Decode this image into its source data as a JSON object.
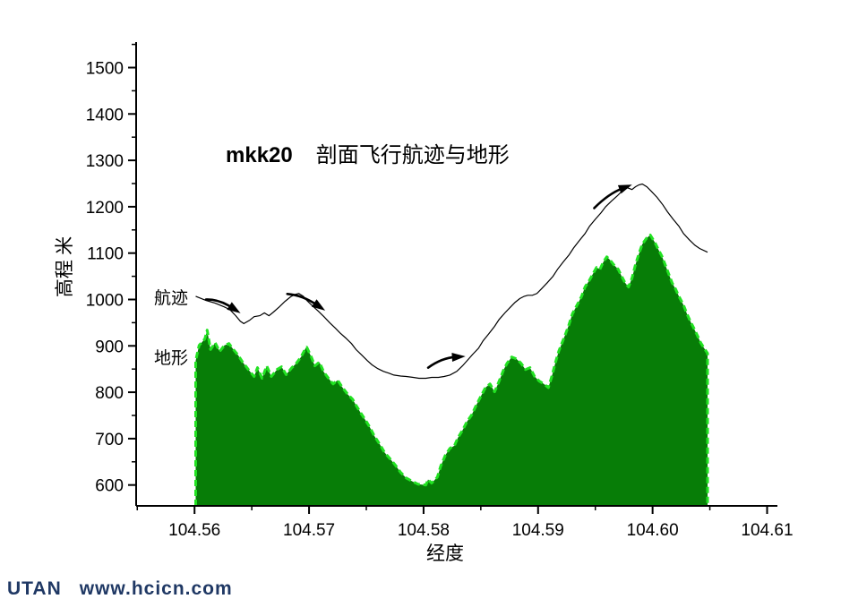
{
  "title": {
    "prefix": "mkk20",
    "text": "剖面飞行航迹与地形"
  },
  "labels": {
    "track": "航迹",
    "terrain": "地形",
    "y_axis": "高程 米",
    "x_axis": "经度"
  },
  "footer": {
    "brand": "UTAN",
    "url": "www.hcicn.com",
    "color": "#1f3864"
  },
  "colors": {
    "terrain_fill": "#077d07",
    "terrain_edge": "#22e222",
    "track": "#000000",
    "axis": "#000000",
    "background": "#ffffff"
  },
  "chart_data": {
    "type": "area",
    "title": "mkk20 剖面飞行航迹与地形",
    "xlabel": "经度",
    "ylabel": "高程 米",
    "xlim": [
      104.5549,
      104.6109
    ],
    "ylim": [
      555,
      1555
    ],
    "grid": false,
    "x_ticks": [
      104.56,
      104.57,
      104.58,
      104.59,
      104.6,
      104.61
    ],
    "x_minor_ticks": [
      104.555,
      104.565,
      104.575,
      104.585,
      104.595,
      104.605
    ],
    "y_ticks": [
      600,
      700,
      800,
      900,
      1000,
      1100,
      1200,
      1300,
      1400,
      1500
    ],
    "y_minor_ticks": [
      650,
      750,
      850,
      950,
      1050,
      1150,
      1250,
      1350,
      1450,
      1550
    ],
    "series": [
      {
        "name": "地形",
        "type": "area",
        "points": [
          [
            104.5601,
            868
          ],
          [
            104.5604,
            901
          ],
          [
            104.5609,
            915
          ],
          [
            104.5611,
            934
          ],
          [
            104.5614,
            892
          ],
          [
            104.5618,
            907
          ],
          [
            104.5622,
            888
          ],
          [
            104.5626,
            901
          ],
          [
            104.563,
            905
          ],
          [
            104.5634,
            892
          ],
          [
            104.5638,
            880
          ],
          [
            104.5642,
            865
          ],
          [
            104.5647,
            849
          ],
          [
            104.5652,
            834
          ],
          [
            104.5655,
            853
          ],
          [
            104.5659,
            830
          ],
          [
            104.5663,
            857
          ],
          [
            104.5667,
            834
          ],
          [
            104.5672,
            849
          ],
          [
            104.5676,
            855
          ],
          [
            104.568,
            838
          ],
          [
            104.5685,
            853
          ],
          [
            104.5689,
            863
          ],
          [
            104.5693,
            876
          ],
          [
            104.5697,
            895
          ],
          [
            104.5698,
            897
          ],
          [
            104.5702,
            876
          ],
          [
            104.5705,
            857
          ],
          [
            104.5709,
            865
          ],
          [
            104.5713,
            843
          ],
          [
            104.5717,
            830
          ],
          [
            104.5721,
            818
          ],
          [
            104.5725,
            826
          ],
          [
            104.5729,
            811
          ],
          [
            104.5734,
            795
          ],
          [
            104.5738,
            785
          ],
          [
            104.5741,
            772
          ],
          [
            104.5745,
            756
          ],
          [
            104.5749,
            741
          ],
          [
            104.5753,
            725
          ],
          [
            104.5757,
            706
          ],
          [
            104.5762,
            687
          ],
          [
            104.5766,
            670
          ],
          [
            104.5771,
            656
          ],
          [
            104.5776,
            641
          ],
          [
            104.578,
            627
          ],
          [
            104.5785,
            615
          ],
          [
            104.579,
            608
          ],
          [
            104.5795,
            602
          ],
          [
            104.5802,
            600
          ],
          [
            104.5804,
            612
          ],
          [
            104.5807,
            604
          ],
          [
            104.5812,
            617
          ],
          [
            104.5815,
            641
          ],
          [
            104.5819,
            664
          ],
          [
            104.5823,
            679
          ],
          [
            104.5827,
            685
          ],
          [
            104.583,
            702
          ],
          [
            104.5834,
            718
          ],
          [
            104.5838,
            737
          ],
          [
            104.5842,
            751
          ],
          [
            104.5846,
            772
          ],
          [
            104.585,
            791
          ],
          [
            104.5854,
            810
          ],
          [
            104.5858,
            818
          ],
          [
            104.5862,
            801
          ],
          [
            104.5866,
            824
          ],
          [
            104.587,
            849
          ],
          [
            104.5873,
            863
          ],
          [
            104.5877,
            876
          ],
          [
            104.5881,
            872
          ],
          [
            104.5885,
            863
          ],
          [
            104.5889,
            849
          ],
          [
            104.5893,
            853
          ],
          [
            104.5897,
            834
          ],
          [
            104.5901,
            824
          ],
          [
            104.5905,
            818
          ],
          [
            104.5909,
            810
          ],
          [
            104.5912,
            834
          ],
          [
            104.5915,
            863
          ],
          [
            104.5918,
            888
          ],
          [
            104.5921,
            907
          ],
          [
            104.5924,
            926
          ],
          [
            104.5927,
            946
          ],
          [
            104.593,
            969
          ],
          [
            104.5934,
            988
          ],
          [
            104.5938,
            1007
          ],
          [
            104.5941,
            1027
          ],
          [
            104.5945,
            1042
          ],
          [
            104.5948,
            1056
          ],
          [
            104.5951,
            1069
          ],
          [
            104.5954,
            1065
          ],
          [
            104.5957,
            1081
          ],
          [
            104.596,
            1092
          ],
          [
            104.5963,
            1085
          ],
          [
            104.5966,
            1075
          ],
          [
            104.597,
            1065
          ],
          [
            104.5973,
            1050
          ],
          [
            104.5976,
            1036
          ],
          [
            104.5979,
            1027
          ],
          [
            104.5982,
            1046
          ],
          [
            104.5985,
            1075
          ],
          [
            104.5988,
            1098
          ],
          [
            104.5991,
            1119
          ],
          [
            104.5995,
            1133
          ],
          [
            104.5998,
            1139
          ],
          [
            104.6002,
            1123
          ],
          [
            104.6005,
            1108
          ],
          [
            104.6008,
            1094
          ],
          [
            104.6011,
            1075
          ],
          [
            104.6014,
            1056
          ],
          [
            104.6017,
            1036
          ],
          [
            104.602,
            1023
          ],
          [
            104.6023,
            1007
          ],
          [
            104.6027,
            988
          ],
          [
            104.603,
            969
          ],
          [
            104.6033,
            953
          ],
          [
            104.6036,
            938
          ],
          [
            104.6039,
            923
          ],
          [
            104.6042,
            907
          ],
          [
            104.6045,
            895
          ],
          [
            104.6048,
            884
          ]
        ]
      },
      {
        "name": "航迹",
        "type": "line",
        "points": [
          [
            104.5601,
            1007
          ],
          [
            104.561,
            998
          ],
          [
            104.5618,
            992
          ],
          [
            104.5626,
            984
          ],
          [
            104.5631,
            978
          ],
          [
            104.5636,
            965
          ],
          [
            104.564,
            953
          ],
          [
            104.5643,
            948
          ],
          [
            104.5648,
            955
          ],
          [
            104.5652,
            963
          ],
          [
            104.5657,
            965
          ],
          [
            104.5661,
            971
          ],
          [
            104.5665,
            965
          ],
          [
            104.5669,
            973
          ],
          [
            104.5674,
            984
          ],
          [
            104.5679,
            996
          ],
          [
            104.5684,
            1006
          ],
          [
            104.5688,
            1011
          ],
          [
            104.5691,
            1013
          ],
          [
            104.5695,
            1007
          ],
          [
            104.5698,
            998
          ],
          [
            104.5703,
            986
          ],
          [
            104.5708,
            975
          ],
          [
            104.5713,
            963
          ],
          [
            104.5718,
            950
          ],
          [
            104.5723,
            938
          ],
          [
            104.5727,
            928
          ],
          [
            104.5732,
            917
          ],
          [
            104.5737,
            905
          ],
          [
            104.5741,
            892
          ],
          [
            104.5746,
            880
          ],
          [
            104.5751,
            868
          ],
          [
            104.5755,
            859
          ],
          [
            104.576,
            851
          ],
          [
            104.5765,
            845
          ],
          [
            104.577,
            841
          ],
          [
            104.5774,
            837
          ],
          [
            104.578,
            835
          ],
          [
            104.5785,
            834
          ],
          [
            104.5791,
            832
          ],
          [
            104.5796,
            830
          ],
          [
            104.5802,
            830
          ],
          [
            104.5807,
            832
          ],
          [
            104.5813,
            832
          ],
          [
            104.5818,
            834
          ],
          [
            104.5823,
            837
          ],
          [
            104.5829,
            845
          ],
          [
            104.5834,
            857
          ],
          [
            104.5838,
            868
          ],
          [
            104.5843,
            882
          ],
          [
            104.5848,
            895
          ],
          [
            104.5852,
            911
          ],
          [
            104.5857,
            926
          ],
          [
            104.5862,
            942
          ],
          [
            104.5866,
            957
          ],
          [
            104.5871,
            971
          ],
          [
            104.5876,
            984
          ],
          [
            104.588,
            994
          ],
          [
            104.5884,
            1002
          ],
          [
            104.5888,
            1007
          ],
          [
            104.5891,
            1009
          ],
          [
            104.5895,
            1009
          ],
          [
            104.5899,
            1013
          ],
          [
            104.5903,
            1023
          ],
          [
            104.5908,
            1036
          ],
          [
            104.5913,
            1050
          ],
          [
            104.5917,
            1065
          ],
          [
            104.5922,
            1081
          ],
          [
            104.5927,
            1096
          ],
          [
            104.5931,
            1111
          ],
          [
            104.5936,
            1127
          ],
          [
            104.5941,
            1142
          ],
          [
            104.5945,
            1158
          ],
          [
            104.595,
            1173
          ],
          [
            104.5955,
            1187
          ],
          [
            104.5959,
            1200
          ],
          [
            104.5964,
            1212
          ],
          [
            104.5969,
            1223
          ],
          [
            104.5973,
            1233
          ],
          [
            104.5978,
            1241
          ],
          [
            104.5982,
            1237
          ],
          [
            104.5985,
            1243
          ],
          [
            104.5988,
            1247
          ],
          [
            104.5991,
            1249
          ],
          [
            104.5995,
            1243
          ],
          [
            104.5999,
            1233
          ],
          [
            104.6004,
            1220
          ],
          [
            104.6009,
            1204
          ],
          [
            104.6013,
            1189
          ],
          [
            104.6018,
            1173
          ],
          [
            104.6023,
            1158
          ],
          [
            104.6027,
            1142
          ],
          [
            104.6032,
            1129
          ],
          [
            104.6037,
            1117
          ],
          [
            104.6041,
            1110
          ],
          [
            104.6048,
            1102
          ]
        ]
      }
    ],
    "arrows": [
      {
        "tail": [
          104.561,
          1000
        ],
        "head": [
          104.5633,
          982
        ]
      },
      {
        "tail": [
          104.5681,
          1012
        ],
        "head": [
          104.5707,
          988
        ]
      },
      {
        "tail": [
          104.5804,
          853
        ],
        "head": [
          104.5828,
          876
        ]
      },
      {
        "tail": [
          104.5949,
          1197
        ],
        "head": [
          104.5974,
          1240
        ]
      }
    ]
  }
}
